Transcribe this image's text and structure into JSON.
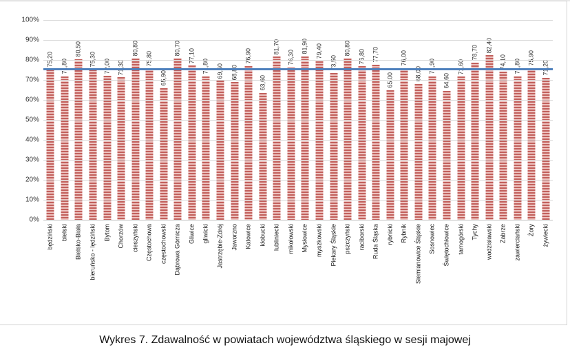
{
  "artifacts": {
    "top_remnant_glyph": "."
  },
  "caption": "Wykres 7. Zdawalność w powiatach województwa śląskiego w sesji majowej",
  "chart_data": {
    "type": "bar",
    "title": "",
    "xlabel": "",
    "ylabel": "",
    "ylim": [
      0,
      100
    ],
    "grid": true,
    "legend": "none",
    "y_ticks": [
      "100%",
      "90%",
      "80%",
      "70%",
      "60%",
      "50%",
      "40%",
      "30%",
      "20%",
      "10%",
      "0%"
    ],
    "categories": [
      "będziński",
      "bielski",
      "Bielsko-Biała",
      "bieruńsko - lędziński",
      "Bytom",
      "Chorzów",
      "cieszyński",
      "Częstochowa",
      "częstochowski",
      "Dąbrowa Górnicza",
      "Gliwice",
      "gliwicki",
      "Jastrzębie-Zdrój",
      "Jaworzno",
      "Katowice",
      "kłobucki",
      "lubliniecki",
      "mikołowski",
      "Mysłowice",
      "myszkowski",
      "Piekary Śląskie",
      "pszczyński",
      "raciborski",
      "Ruda Śląska",
      "rybnicki",
      "Rybnik",
      "Siemianowice Śląskie",
      "Sosnowiec",
      "Świętochłowice",
      "tarnogórski",
      "Tychy",
      "wodzisławski",
      "Zabrze",
      "zawierciański",
      "Żory",
      "żywiecki"
    ],
    "values": [
      75.2,
      71.8,
      80.5,
      75.3,
      72.0,
      71.3,
      80.8,
      75.8,
      65.9,
      80.7,
      77.1,
      71.8,
      69.6,
      68.8,
      76.9,
      63.6,
      81.7,
      76.3,
      81.9,
      79.4,
      73.5,
      80.8,
      76.8,
      77.7,
      65.0,
      76.0,
      68.0,
      71.9,
      64.6,
      71.6,
      78.7,
      82.4,
      74.1,
      71.8,
      75.9,
      71.2
    ],
    "value_labels": [
      "75,20",
      "71,80",
      "80,50",
      "75,30",
      "72,00",
      "71,30",
      "80,80",
      "75,80",
      "65,90",
      "80,70",
      "77,10",
      "71,80",
      "69,60",
      "68,80",
      "76,90",
      "63,60",
      "81,70",
      "76,30",
      "81,90",
      "79,40",
      "73,50",
      "80,80",
      "76,80",
      "77,70",
      "65,00",
      "76,00",
      "68,00",
      "71,90",
      "64,60",
      "71,60",
      "78,70",
      "82,40",
      "74,10",
      "71,80",
      "75,90",
      "71,20"
    ],
    "reference_line": {
      "value": 75.6,
      "color": "#4f81bd"
    },
    "colors": {
      "bar_stripe_dark": "#c2605c",
      "bar_stripe_light": "#edc3c0",
      "gridline": "#d9d9d9",
      "axis_line": "#bfbfbf",
      "reference_line": "#4f81bd"
    }
  }
}
